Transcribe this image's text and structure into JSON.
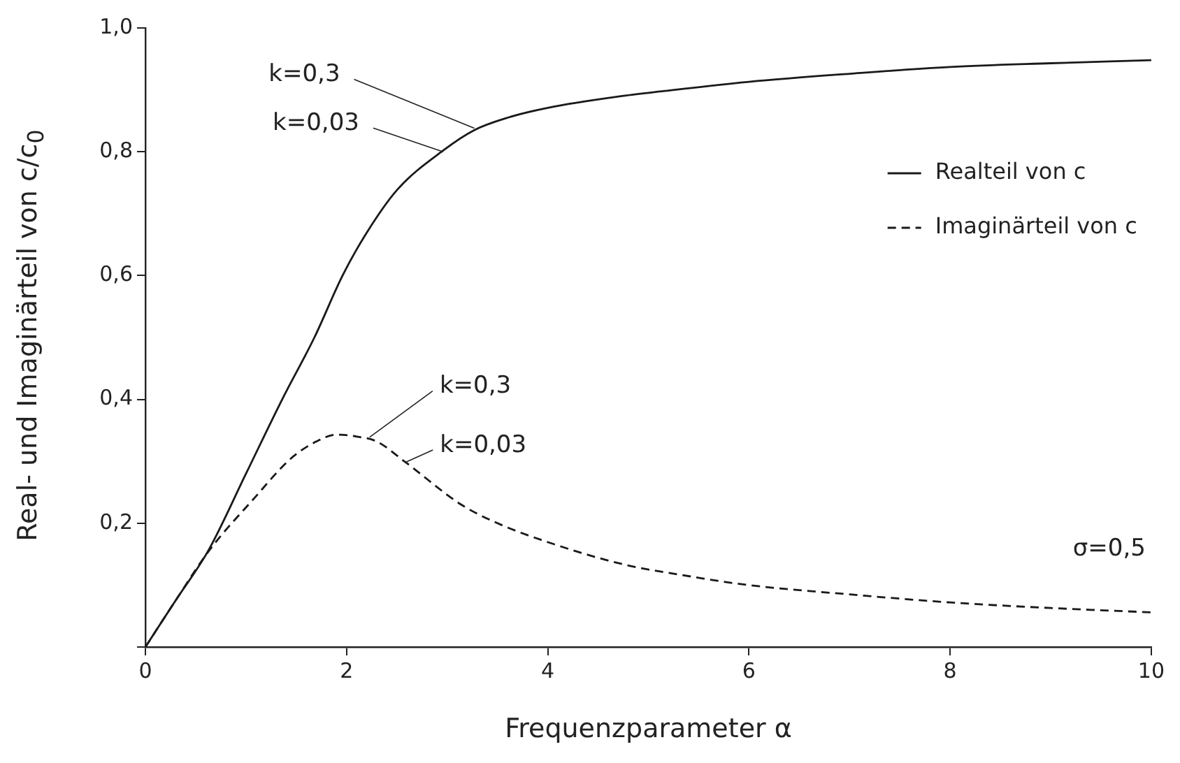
{
  "chart_data": {
    "type": "line",
    "xlabel": "Frequenzparameter α",
    "ylabel": "Real- und Imaginärteil von c/c$_{0}$",
    "xlim": [
      0,
      10
    ],
    "xticks": [
      0,
      2,
      4,
      6,
      8,
      10
    ],
    "ylim": [
      0,
      1
    ],
    "yticks": [
      {
        "value": 0,
        "label": null
      },
      {
        "value": 0.2,
        "label": "0,2"
      },
      {
        "value": 0.4,
        "label": "0,4"
      },
      {
        "value": 0.6,
        "label": "0,6"
      },
      {
        "value": 0.8,
        "label": "0,8"
      },
      {
        "value": 1,
        "label": "1,0"
      }
    ],
    "grid": false,
    "legend": "top right",
    "marker": "none",
    "series": [
      {
        "name": "Realteil von c",
        "color": "#1a1a1a",
        "line_style": "solid",
        "x": [
          0,
          0.3,
          0.63,
          1,
          1.36,
          1.68,
          1.96,
          2.18,
          2.5,
          2.96,
          3.27,
          3.6,
          4,
          4.74,
          5.15,
          6,
          7,
          8,
          9,
          10
        ],
        "values": [
          0,
          0.075,
          0.157,
          0.28,
          0.4,
          0.5,
          0.6,
          0.664,
          0.738,
          0.802,
          0.835,
          0.855,
          0.871,
          0.89,
          0.898,
          0.913,
          0.926,
          0.937,
          0.943,
          0.948
        ]
      },
      {
        "name": "Imaginärteil von c",
        "color": "#1a1a1a",
        "line_style": "dashed",
        "x": [
          0,
          0.3,
          0.63,
          1.08,
          1.45,
          1.7,
          1.9,
          2.1,
          2.3,
          2.59,
          3.14,
          3.5,
          3.99,
          4.74,
          5.42,
          6,
          7,
          8,
          9,
          10
        ],
        "values": [
          0,
          0.075,
          0.155,
          0.24,
          0.305,
          0.332,
          0.343,
          0.34,
          0.332,
          0.298,
          0.23,
          0.2,
          0.17,
          0.134,
          0.114,
          0.1,
          0.085,
          0.072,
          0.063,
          0.056
        ]
      }
    ],
    "annotations": [
      {
        "text": "k=0,3",
        "x": 3.27,
        "y": 0.838
      },
      {
        "text": "k=0,03",
        "x": 2.96,
        "y": 0.8
      },
      {
        "text": "k=0,3",
        "x": 2.23,
        "y": 0.339
      },
      {
        "text": "k=0,03",
        "x": 2.58,
        "y": 0.298
      },
      "σ=0,5"
    ]
  }
}
